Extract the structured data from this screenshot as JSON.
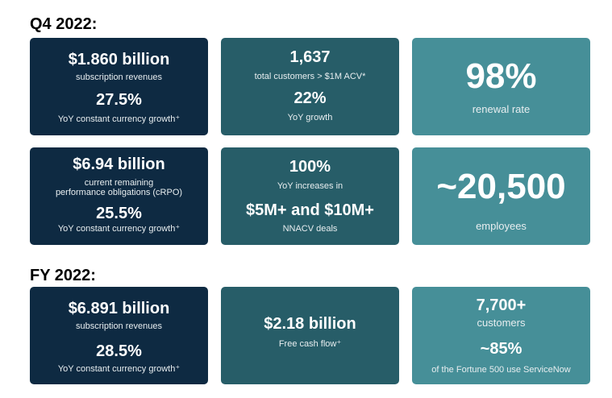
{
  "q4": {
    "heading": "Q4 2022:",
    "subscription": {
      "value": "$1.860 billion",
      "label": "subscription revenues",
      "growth": "27.5%",
      "growth_label": "YoY constant currency growth⁺"
    },
    "customers": {
      "value": "1,637",
      "label": "total customers > $1M ACV*",
      "growth": "22%",
      "growth_label": "YoY growth"
    },
    "renewal": {
      "value": "98%",
      "label": "renewal rate"
    },
    "crpo": {
      "value": "$6.94 billion",
      "label_line1": "current remaining",
      "label_line2": "performance  obligations (cRPO)",
      "growth": "25.5%",
      "growth_label": "YoY constant currency growth⁺"
    },
    "deals": {
      "value": "100%",
      "label": "YoY increases in",
      "value2": "$5M+ and $10M+",
      "label2": "NNACV deals"
    },
    "employees": {
      "value": "~20,500",
      "label": "employees"
    }
  },
  "fy": {
    "heading": "FY 2022:",
    "subscription": {
      "value": "$6.891 billion",
      "label": "subscription revenues",
      "growth": "28.5%",
      "growth_label": "YoY constant currency growth⁺"
    },
    "fcf": {
      "value": "$2.18 billion",
      "label": "Free cash flow⁺"
    },
    "customers": {
      "value": "7,700+",
      "label": "customers",
      "value2": "~85%",
      "label2": "of the Fortune 500 use ServiceNow"
    }
  },
  "colors": {
    "dark": "#0e2a42",
    "mid": "#275d68",
    "light": "#468f98"
  }
}
